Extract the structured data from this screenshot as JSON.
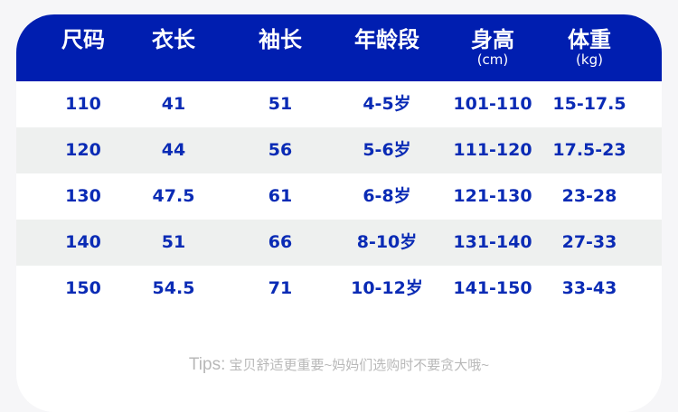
{
  "colors": {
    "header_bg": "#001eb0",
    "header_text": "#ffffff",
    "cell_text": "#0a2bb5",
    "alt_row": "#eef0ef",
    "tips_text": "#b8b8b8"
  },
  "headers": [
    {
      "label": "尺码",
      "unit": ""
    },
    {
      "label": "衣长",
      "unit": ""
    },
    {
      "label": "袖长",
      "unit": ""
    },
    {
      "label": "年龄段",
      "unit": ""
    },
    {
      "label": "身高",
      "unit": "(cm)"
    },
    {
      "label": "体重",
      "unit": "(kg)"
    }
  ],
  "rows": [
    [
      "110",
      "41",
      "51",
      "4-5岁",
      "101-110",
      "15-17.5"
    ],
    [
      "120",
      "44",
      "56",
      "5-6岁",
      "111-120",
      "17.5-23"
    ],
    [
      "130",
      "47.5",
      "61",
      "6-8岁",
      "121-130",
      "23-28"
    ],
    [
      "140",
      "51",
      "66",
      "8-10岁",
      "131-140",
      "27-33"
    ],
    [
      "150",
      "54.5",
      "71",
      "10-12岁",
      "141-150",
      "33-43"
    ]
  ],
  "tips": {
    "prefix": "Tips:",
    "text": "宝贝舒适更重要~妈妈们选购时不要贪大哦~"
  }
}
